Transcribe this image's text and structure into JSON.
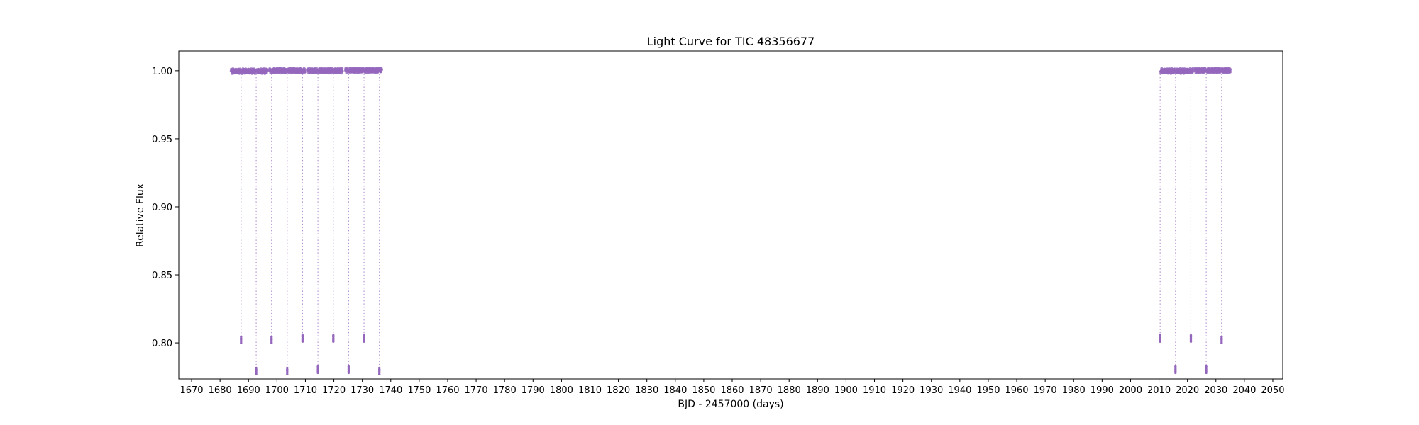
{
  "chart_data": {
    "type": "scatter",
    "title": "Light Curve for TIC 48356677",
    "xlabel": "BJD - 2457000 (days)",
    "ylabel": "Relative Flux",
    "xlim": [
      1665.5,
      2053.5
    ],
    "ylim": [
      0.7735,
      1.0145
    ],
    "x_ticks": [
      1670,
      1680,
      1690,
      1700,
      1710,
      1720,
      1730,
      1740,
      1750,
      1760,
      1770,
      1780,
      1790,
      1800,
      1810,
      1820,
      1830,
      1840,
      1850,
      1860,
      1870,
      1880,
      1890,
      1900,
      1910,
      1920,
      1930,
      1940,
      1950,
      1960,
      1970,
      1980,
      1990,
      2000,
      2010,
      2020,
      2030,
      2040,
      2050
    ],
    "y_ticks": [
      "0.80",
      "0.85",
      "0.90",
      "0.95",
      "1.00"
    ],
    "grid": false,
    "marker_color": "#9467bd",
    "series": [
      {
        "segments": [
          {
            "x_start": 1683.9,
            "x_end": 1696.6,
            "y": 0.9997
          },
          {
            "x_start": 1697.4,
            "x_end": 1709.9,
            "y": 1.0001
          },
          {
            "x_start": 1710.8,
            "x_end": 1723.0,
            "y": 1.0
          },
          {
            "x_start": 1724.1,
            "x_end": 1736.8,
            "y": 1.0003
          },
          {
            "x_start": 2010.3,
            "x_end": 2021.9,
            "y": 0.9998
          },
          {
            "x_start": 2022.6,
            "x_end": 2035.1,
            "y": 1.0002
          }
        ],
        "dips": [
          {
            "x": 1687.4,
            "min": 0.8
          },
          {
            "x": 1692.7,
            "min": 0.777
          },
          {
            "x": 1698.1,
            "min": 0.8
          },
          {
            "x": 1703.6,
            "min": 0.777
          },
          {
            "x": 1709.0,
            "min": 0.801
          },
          {
            "x": 1714.4,
            "min": 0.778
          },
          {
            "x": 1719.8,
            "min": 0.801
          },
          {
            "x": 1725.2,
            "min": 0.778
          },
          {
            "x": 1730.6,
            "min": 0.801
          },
          {
            "x": 1736.0,
            "min": 0.777
          },
          {
            "x": 2010.4,
            "min": 0.801
          },
          {
            "x": 2015.8,
            "min": 0.778
          },
          {
            "x": 2021.2,
            "min": 0.801
          },
          {
            "x": 2026.6,
            "min": 0.778
          },
          {
            "x": 2032.0,
            "min": 0.8
          }
        ]
      }
    ]
  }
}
